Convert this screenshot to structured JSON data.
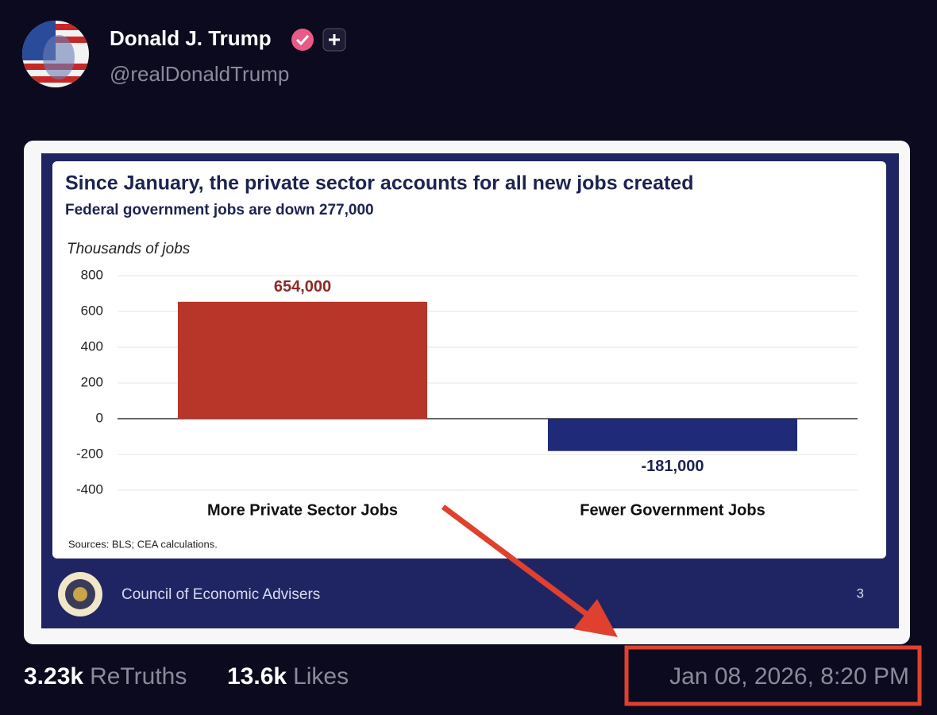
{
  "post": {
    "name": "Donald J. Trump",
    "handle": "@realDonaldTrump",
    "retruths_count": "3.23k",
    "retruths_label": "ReTruths",
    "likes_count": "13.6k",
    "likes_label": "Likes",
    "timestamp": "Jan 08, 2026, 8:20 PM"
  },
  "chart": {
    "type": "bar",
    "title": "Since January, the private sector accounts for all new jobs created",
    "subtitle": "Federal government jobs are down 277,000",
    "y_label": "Thousands of jobs",
    "categories": [
      "More Private Sector Jobs",
      "Fewer Government Jobs"
    ],
    "values": [
      654,
      -181
    ],
    "value_labels": [
      "654,000",
      "-181,000"
    ],
    "colors": [
      "#b8352a",
      "#1f2a78"
    ],
    "label_colors": [
      "#8c2a26",
      "#1c2350"
    ],
    "ylim": [
      -400,
      800
    ],
    "yticks": [
      -400,
      -200,
      0,
      200,
      400,
      600,
      800
    ],
    "grid": true,
    "source": "Sources: BLS; CEA calculations.",
    "footer": "Council of Economic Advisers",
    "page_number": "3"
  }
}
